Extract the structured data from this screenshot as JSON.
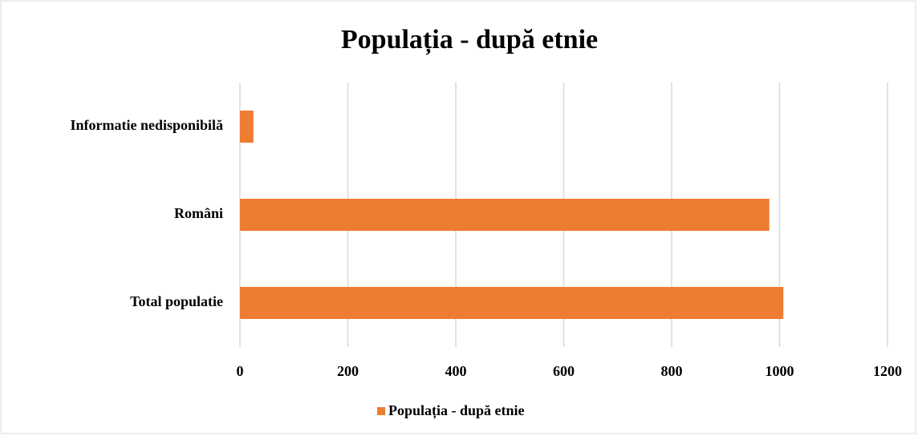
{
  "chart_data": {
    "type": "bar",
    "orientation": "horizontal",
    "title": "Populația - după etnie",
    "categories": [
      "Total populatie",
      "Români",
      "Informatie nedisponibilă"
    ],
    "series": [
      {
        "name": "Populația - după etnie",
        "color": "#ed7d31",
        "values": [
          1007,
          981,
          25
        ]
      }
    ],
    "xlim": [
      0,
      1200
    ],
    "xticks": [
      0,
      200,
      400,
      600,
      800,
      1000,
      1200
    ],
    "grid": true,
    "legend": "bottom"
  }
}
